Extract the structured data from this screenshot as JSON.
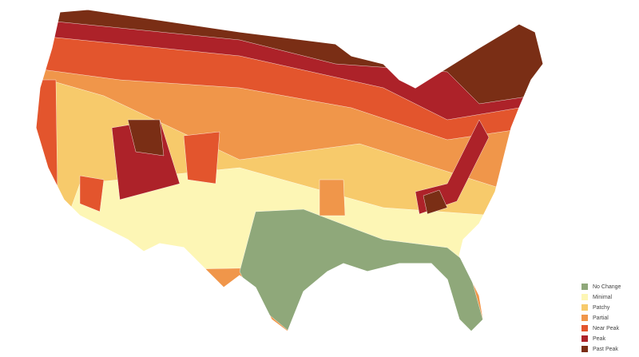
{
  "legend": {
    "items": [
      {
        "label": "No Change",
        "color": "#8fa87a"
      },
      {
        "label": "Minimal",
        "color": "#fdf6b5"
      },
      {
        "label": "Patchy",
        "color": "#f7ca6b"
      },
      {
        "label": "Partial",
        "color": "#f0964a"
      },
      {
        "label": "Near Peak",
        "color": "#e3552d"
      },
      {
        "label": "Peak",
        "color": "#ad2229"
      },
      {
        "label": "Past Peak",
        "color": "#7a2e15"
      }
    ]
  }
}
